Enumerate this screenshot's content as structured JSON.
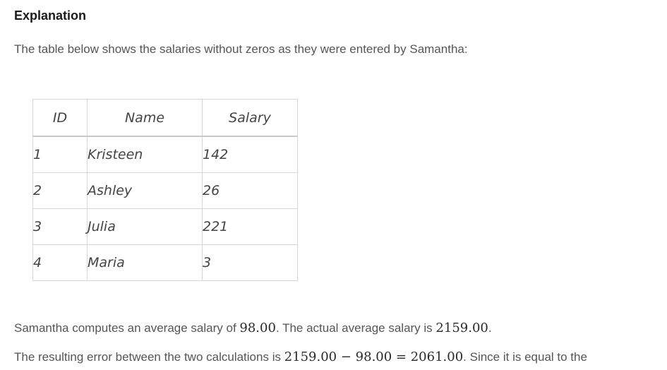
{
  "heading": "Explanation",
  "intro": "The table below shows the salaries without zeros as they were entered by Samantha:",
  "table": {
    "headers": [
      "ID",
      "Name",
      "Salary"
    ],
    "rows": [
      {
        "id": "1",
        "name": "Kristeen",
        "salary": "142"
      },
      {
        "id": "2",
        "name": "Ashley",
        "salary": "26"
      },
      {
        "id": "3",
        "name": "Julia",
        "salary": "221"
      },
      {
        "id": "4",
        "name": "Maria",
        "salary": "3"
      }
    ]
  },
  "para1": {
    "t1": "Samantha computes an average salary of ",
    "m1": "98.00",
    "t2": ". The actual average salary is ",
    "m2": "2159.00",
    "t3": "."
  },
  "para2": {
    "t1": "The resulting error between the two calculations is ",
    "m1": "2159.00 − 98.00 = 2061.00",
    "t2": ". Since it is equal to the"
  }
}
